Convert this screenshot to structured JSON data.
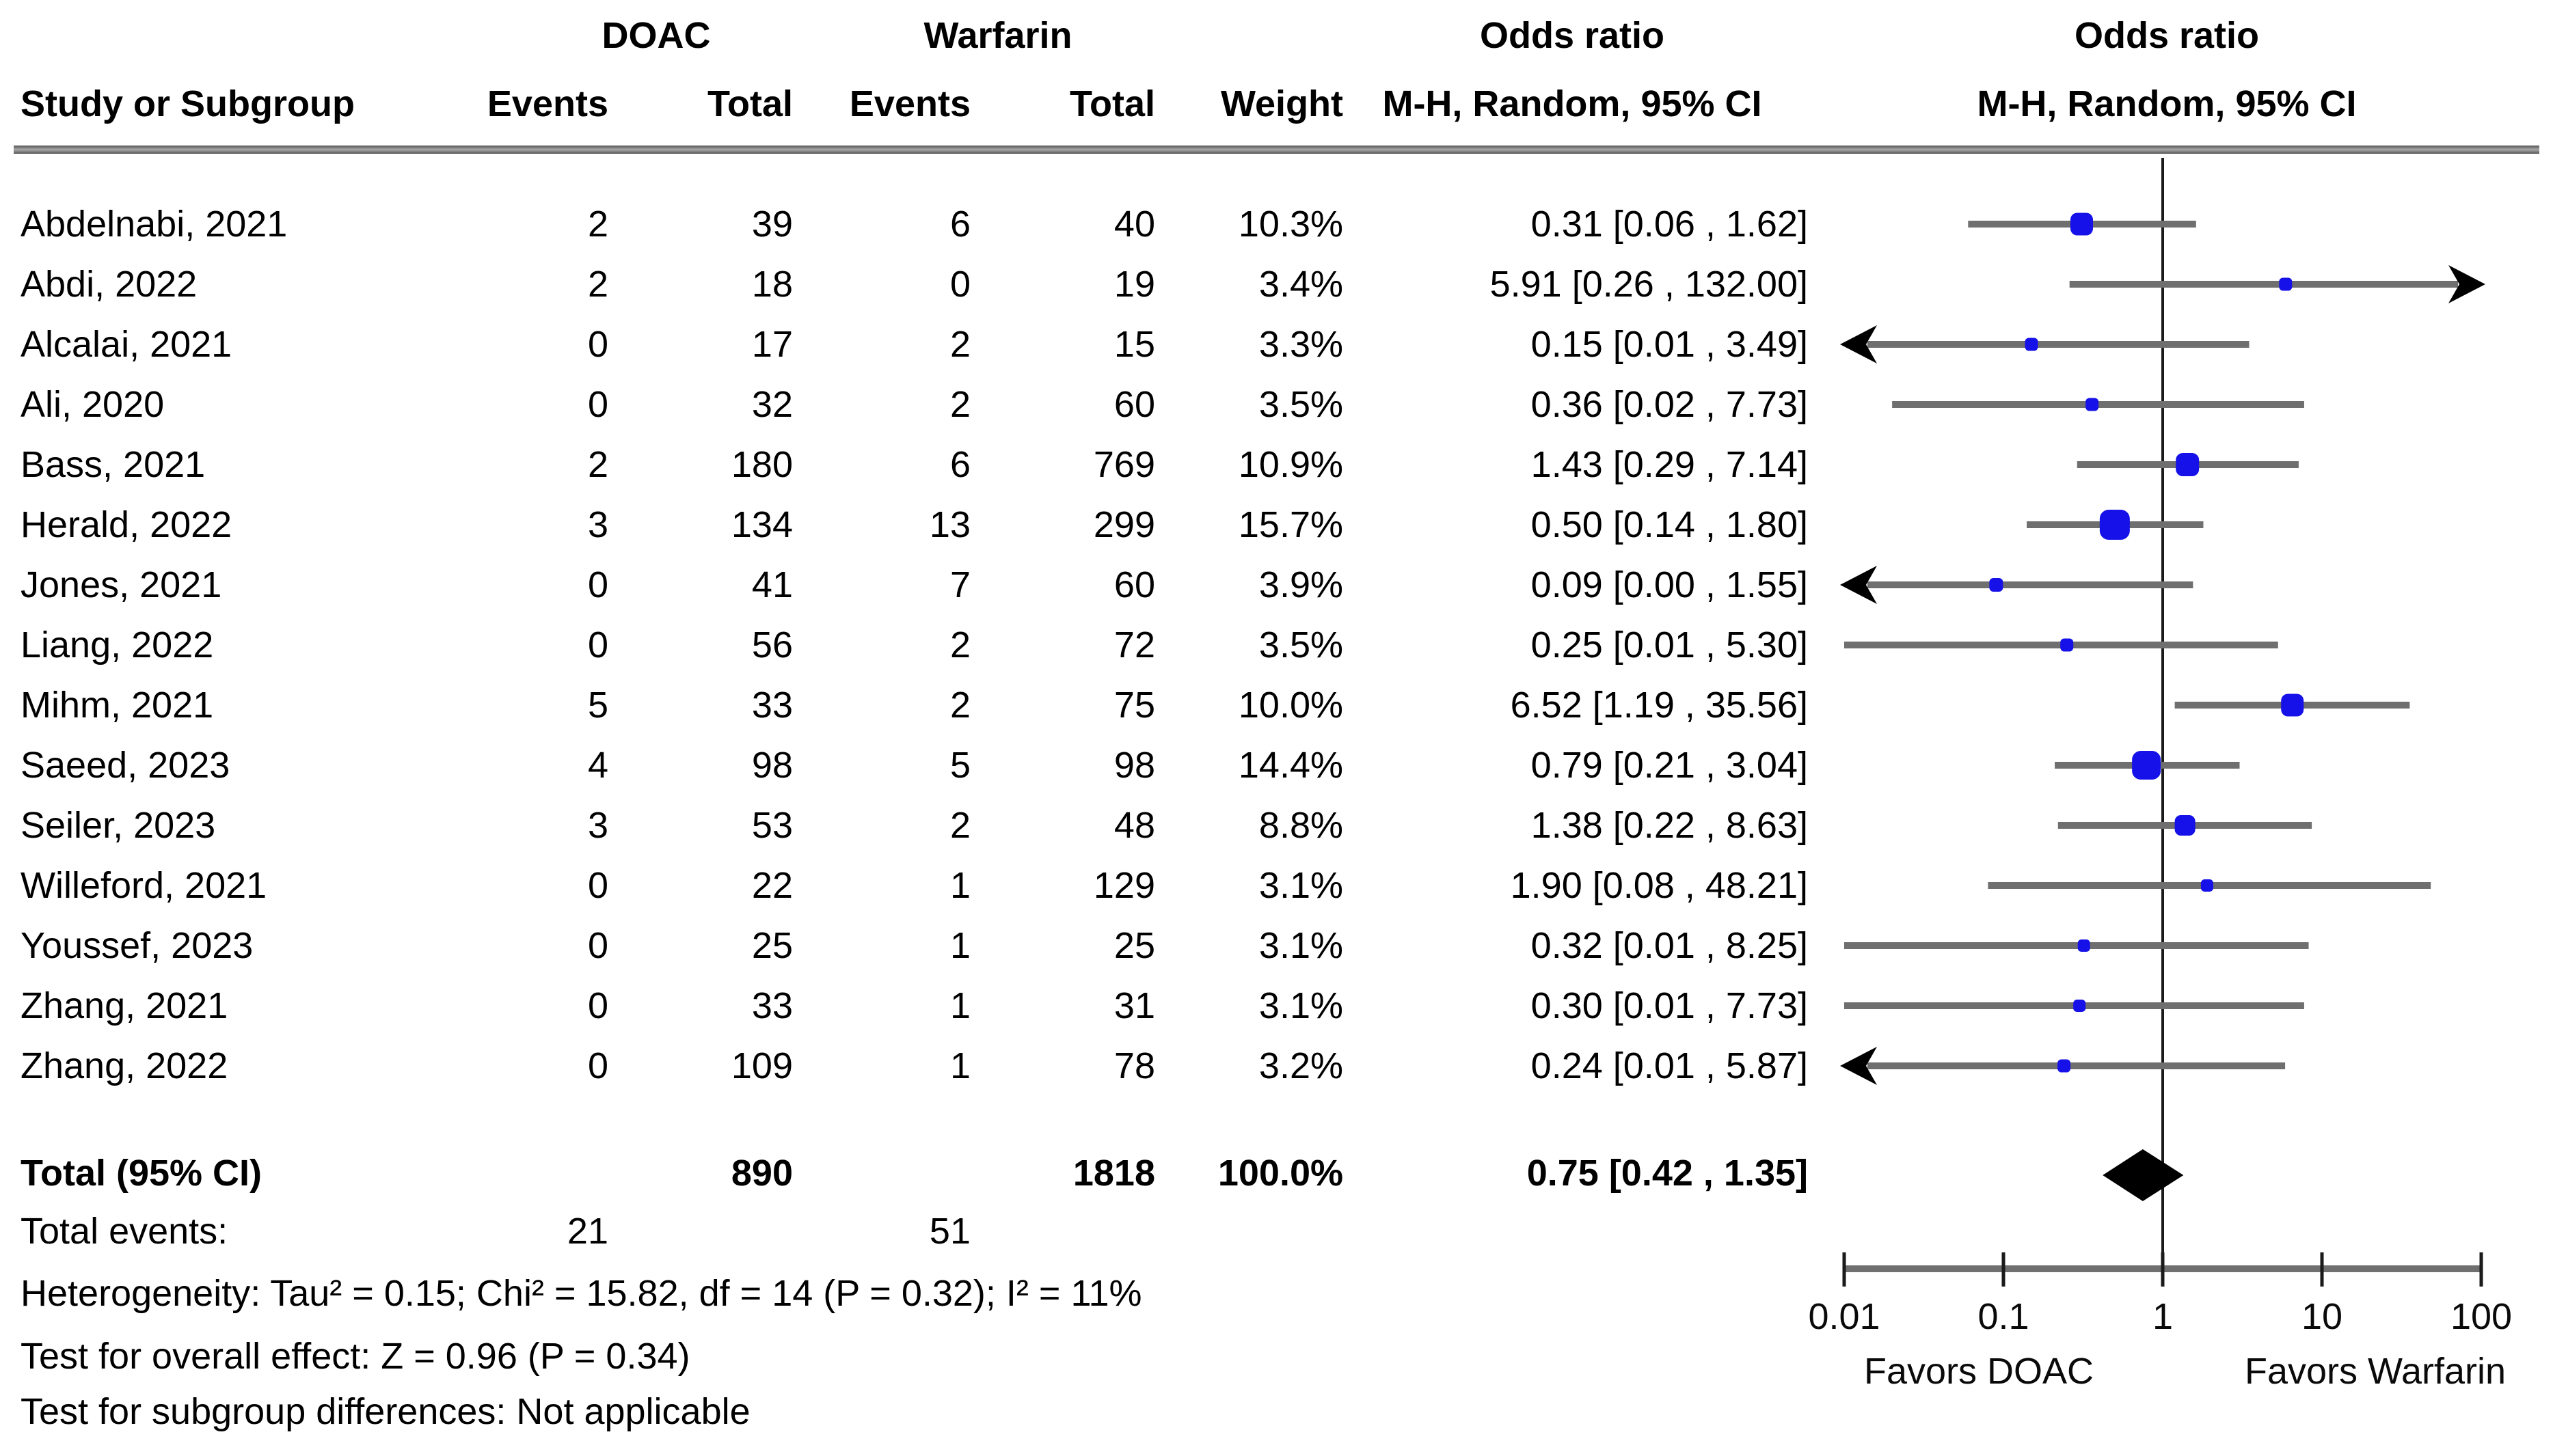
{
  "header": {
    "study_col": "Study or Subgroup",
    "group1": "DOAC",
    "group2": "Warfarin",
    "events_col": "Events",
    "total_col": "Total",
    "weight_col": "Weight",
    "or_title": "Odds ratio",
    "or_subtitle": "M-H, Random, 95% CI",
    "plot_title": "Odds ratio",
    "plot_subtitle": "M-H, Random, 95% CI"
  },
  "chart_data": {
    "type": "forest",
    "effect_measure": "Odds ratio",
    "method": "M-H, Random, 95% CI",
    "x_axis": {
      "scale": "log",
      "ticks": [
        0.01,
        0.1,
        1,
        10,
        100
      ],
      "range": [
        0.01,
        100
      ],
      "label_left": "Favors DOAC",
      "label_right": "Favors Warfarin"
    },
    "studies": [
      {
        "study": "Abdelnabi, 2021",
        "doac_events": 2,
        "doac_total": 39,
        "warfarin_events": 6,
        "warfarin_total": 40,
        "weight_pct": 10.3,
        "or": 0.31,
        "ci_low": 0.06,
        "ci_high": 1.62,
        "arrow": null
      },
      {
        "study": "Abdi, 2022",
        "doac_events": 2,
        "doac_total": 18,
        "warfarin_events": 0,
        "warfarin_total": 19,
        "weight_pct": 3.4,
        "or": 5.91,
        "ci_low": 0.26,
        "ci_high": 132.0,
        "arrow": "right"
      },
      {
        "study": "Alcalai, 2021",
        "doac_events": 0,
        "doac_total": 17,
        "warfarin_events": 2,
        "warfarin_total": 15,
        "weight_pct": 3.3,
        "or": 0.15,
        "ci_low": 0.01,
        "ci_high": 3.49,
        "arrow": "left"
      },
      {
        "study": "Ali, 2020",
        "doac_events": 0,
        "doac_total": 32,
        "warfarin_events": 2,
        "warfarin_total": 60,
        "weight_pct": 3.5,
        "or": 0.36,
        "ci_low": 0.02,
        "ci_high": 7.73,
        "arrow": null
      },
      {
        "study": "Bass, 2021",
        "doac_events": 2,
        "doac_total": 180,
        "warfarin_events": 6,
        "warfarin_total": 769,
        "weight_pct": 10.9,
        "or": 1.43,
        "ci_low": 0.29,
        "ci_high": 7.14,
        "arrow": null
      },
      {
        "study": "Herald, 2022",
        "doac_events": 3,
        "doac_total": 134,
        "warfarin_events": 13,
        "warfarin_total": 299,
        "weight_pct": 15.7,
        "or": 0.5,
        "ci_low": 0.14,
        "ci_high": 1.8,
        "arrow": null
      },
      {
        "study": "Jones, 2021",
        "doac_events": 0,
        "doac_total": 41,
        "warfarin_events": 7,
        "warfarin_total": 60,
        "weight_pct": 3.9,
        "or": 0.09,
        "ci_low": 0.0,
        "ci_high": 1.55,
        "arrow": "left"
      },
      {
        "study": "Liang, 2022",
        "doac_events": 0,
        "doac_total": 56,
        "warfarin_events": 2,
        "warfarin_total": 72,
        "weight_pct": 3.5,
        "or": 0.25,
        "ci_low": 0.01,
        "ci_high": 5.3,
        "arrow": null
      },
      {
        "study": "Mihm, 2021",
        "doac_events": 5,
        "doac_total": 33,
        "warfarin_events": 2,
        "warfarin_total": 75,
        "weight_pct": 10.0,
        "or": 6.52,
        "ci_low": 1.19,
        "ci_high": 35.56,
        "arrow": null
      },
      {
        "study": "Saeed, 2023",
        "doac_events": 4,
        "doac_total": 98,
        "warfarin_events": 5,
        "warfarin_total": 98,
        "weight_pct": 14.4,
        "or": 0.79,
        "ci_low": 0.21,
        "ci_high": 3.04,
        "arrow": null
      },
      {
        "study": "Seiler, 2023",
        "doac_events": 3,
        "doac_total": 53,
        "warfarin_events": 2,
        "warfarin_total": 48,
        "weight_pct": 8.8,
        "or": 1.38,
        "ci_low": 0.22,
        "ci_high": 8.63,
        "arrow": null
      },
      {
        "study": "Willeford, 2021",
        "doac_events": 0,
        "doac_total": 22,
        "warfarin_events": 1,
        "warfarin_total": 129,
        "weight_pct": 3.1,
        "or": 1.9,
        "ci_low": 0.08,
        "ci_high": 48.21,
        "arrow": null
      },
      {
        "study": "Youssef, 2023",
        "doac_events": 0,
        "doac_total": 25,
        "warfarin_events": 1,
        "warfarin_total": 25,
        "weight_pct": 3.1,
        "or": 0.32,
        "ci_low": 0.01,
        "ci_high": 8.25,
        "arrow": null
      },
      {
        "study": "Zhang, 2021",
        "doac_events": 0,
        "doac_total": 33,
        "warfarin_events": 1,
        "warfarin_total": 31,
        "weight_pct": 3.1,
        "or": 0.3,
        "ci_low": 0.01,
        "ci_high": 7.73,
        "arrow": null
      },
      {
        "study": "Zhang, 2022",
        "doac_events": 0,
        "doac_total": 109,
        "warfarin_events": 1,
        "warfarin_total": 78,
        "weight_pct": 3.2,
        "or": 0.24,
        "ci_low": 0.01,
        "ci_high": 5.87,
        "arrow": "left"
      }
    ],
    "total": {
      "label": "Total (95% CI)",
      "doac_total": 890,
      "warfarin_total": 1818,
      "weight_pct": 100.0,
      "or": 0.75,
      "ci_low": 0.42,
      "ci_high": 1.35
    },
    "total_events": {
      "label": "Total events:",
      "doac": 21,
      "warfarin": 51
    },
    "footnotes": [
      "Heterogeneity: Tau² = 0.15; Chi² = 15.82, df = 14 (P = 0.32); I² = 11%",
      "Test for overall effect: Z = 0.96 (P = 0.34)",
      "Test for subgroup differences: Not applicable"
    ]
  },
  "colors": {
    "marker": "#1511e8",
    "ci_line": "#6f6f6f",
    "diamond": "#000000",
    "axis": "#6f6f6f",
    "tick": "#1a1a1a",
    "zero_line": "#1a1a1a",
    "rule": "#808080",
    "text": "#000000"
  }
}
